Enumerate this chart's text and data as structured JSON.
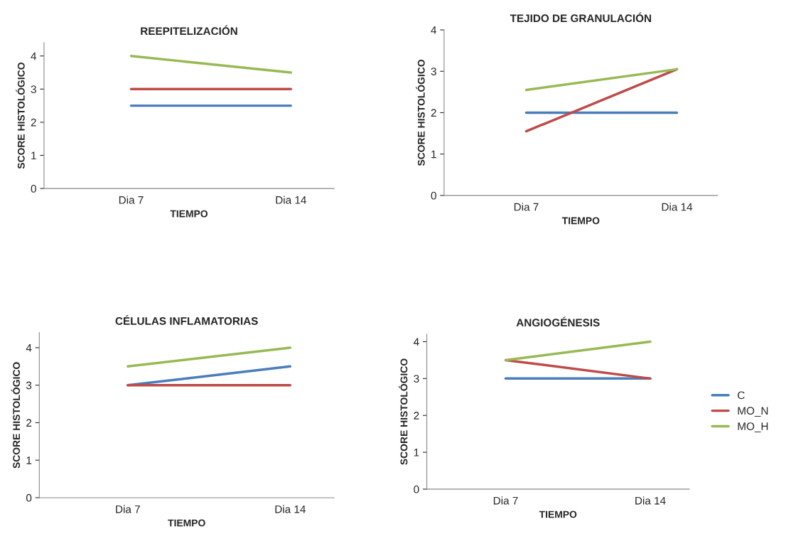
{
  "chart_data": [
    {
      "type": "line",
      "title": "REEPITELIZACIÓN",
      "xlabel": "TIEMPO",
      "ylabel": "SCORE HISTOLÓGICO",
      "categories": [
        "Dia 7",
        "Dia 14"
      ],
      "ylim": [
        0,
        4.4
      ],
      "yticks": [
        0,
        1,
        2,
        3,
        4
      ],
      "series": [
        {
          "color": "#4a7ebb",
          "values": [
            2.5,
            2.5
          ]
        },
        {
          "color": "#be4b48",
          "values": [
            3,
            3
          ]
        },
        {
          "color": "#98b954",
          "values": [
            4,
            3.5
          ]
        }
      ]
    },
    {
      "type": "line",
      "title": "TEJIDO DE GRANULACIÓN",
      "xlabel": "TIEMPO",
      "ylabel": "SCORE HISTOLÓGICO",
      "categories": [
        "Dia 7",
        "Dia 14"
      ],
      "ylim": [
        0,
        4
      ],
      "yticks": [
        0,
        1,
        2,
        3,
        4
      ],
      "series": [
        {
          "color": "#4a7ebb",
          "values": [
            2,
            2
          ]
        },
        {
          "color": "#be4b48",
          "values": [
            1.55,
            3.05
          ]
        },
        {
          "color": "#98b954",
          "values": [
            2.55,
            3.05
          ]
        }
      ]
    },
    {
      "type": "line",
      "title": "CÉLULAS INFLAMATORIAS",
      "xlabel": "TIEMPO",
      "ylabel": "SCORE HISTOLÓGICO",
      "categories": [
        "Dia 7",
        "Dia 14"
      ],
      "ylim": [
        0,
        4.4
      ],
      "yticks": [
        0,
        1,
        2,
        3,
        4
      ],
      "series": [
        {
          "color": "#4a7ebb",
          "values": [
            3,
            3.5
          ]
        },
        {
          "color": "#be4b48",
          "values": [
            3,
            3
          ]
        },
        {
          "color": "#98b954",
          "values": [
            3.5,
            4
          ]
        }
      ]
    },
    {
      "type": "line",
      "title": "ANGIOGÉNESIS",
      "xlabel": "TIEMPO",
      "ylabel": "SCORE HISTOLÓGICO",
      "categories": [
        "Dia 7",
        "Dia 14"
      ],
      "ylim": [
        0,
        4.2
      ],
      "yticks": [
        0,
        1,
        2,
        3,
        4
      ],
      "legend": "right",
      "series": [
        {
          "name": "C",
          "color": "#4a7ebb",
          "values": [
            3,
            3
          ]
        },
        {
          "name": "MO_N",
          "color": "#be4b48",
          "values": [
            3.5,
            3
          ]
        },
        {
          "name": "MO_H",
          "color": "#98b954",
          "values": [
            3.5,
            4
          ]
        }
      ]
    }
  ]
}
